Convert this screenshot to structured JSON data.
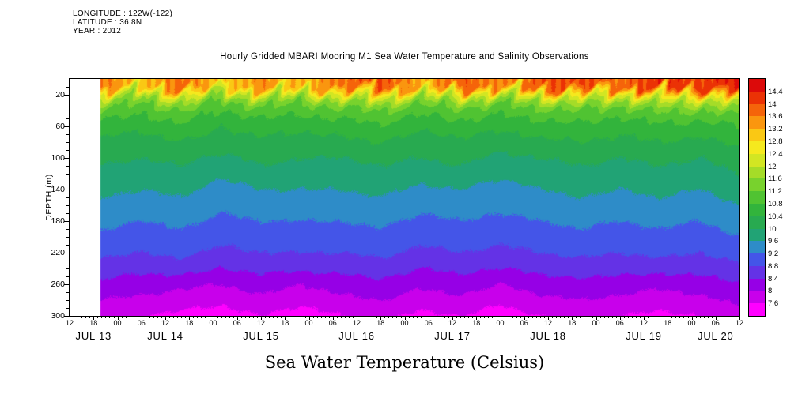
{
  "header": {
    "longitude": "LONGITUDE : 122W(-122)",
    "latitude": "LATITUDE : 36.8N",
    "year": "YEAR : 2012"
  },
  "title": "Hourly Gridded MBARI Mooring M1 Sea Water Temperature and Salinity Observations",
  "caption": "Sea Water Temperature (Celsius)",
  "axes": {
    "y_label": "DEPTH (m)",
    "depth_range_m": [
      0,
      300
    ],
    "depth_major_ticks": [
      20,
      60,
      100,
      140,
      180,
      220,
      260,
      300
    ],
    "depth_minor_step": 10,
    "time_tick_step_hours": 6,
    "time_tick_labels": [
      "12",
      "18",
      "00",
      "06",
      "12",
      "18",
      "00",
      "06",
      "12",
      "18",
      "00",
      "06",
      "12",
      "18",
      "00",
      "06",
      "12",
      "18",
      "00",
      "06",
      "12",
      "18",
      "00",
      "06",
      "12",
      "18",
      "00",
      "06",
      "12"
    ],
    "dates": [
      {
        "label": "JUL 13",
        "start": 0,
        "end": 12
      },
      {
        "label": "JUL 14",
        "start": 12,
        "end": 36
      },
      {
        "label": "JUL 15",
        "start": 36,
        "end": 60
      },
      {
        "label": "JUL 16",
        "start": 60,
        "end": 84
      },
      {
        "label": "JUL 17",
        "start": 84,
        "end": 108
      },
      {
        "label": "JUL 18",
        "start": 108,
        "end": 132
      },
      {
        "label": "JUL 19",
        "start": 132,
        "end": 156
      },
      {
        "label": "JUL 20",
        "start": 156,
        "end": 168
      }
    ]
  },
  "colorbar": {
    "labels_top_to_bottom": [
      "14.4",
      "14",
      "13.6",
      "13.2",
      "12.8",
      "12.4",
      "12",
      "11.6",
      "11.2",
      "10.8",
      "10.4",
      "10",
      "9.6",
      "9.2",
      "8.8",
      "8.4",
      "8",
      "7.6"
    ]
  },
  "chart_data": {
    "type": "heatmap",
    "title": "Hourly Gridded MBARI Mooring M1 Sea Water Temperature and Salinity Observations",
    "ylabel": "DEPTH (m)",
    "units": "Celsius",
    "value_range_c": [
      7.6,
      14.4
    ],
    "levels_c": [
      7.6,
      8,
      8.4,
      8.8,
      9.2,
      9.6,
      10,
      10.4,
      10.8,
      11.2,
      11.6,
      12,
      12.4,
      12.8,
      13.2,
      13.6,
      14,
      14.4
    ],
    "band_colors_low_to_high": [
      "#FF00FF",
      "#C800EB",
      "#9600E6",
      "#6432E6",
      "#4455E8",
      "#2E8CC8",
      "#21A375",
      "#28AA50",
      "#32B43C",
      "#50C332",
      "#78D22D",
      "#A5DC28",
      "#D2E623",
      "#F5E91E",
      "#FAC814",
      "#FA960F",
      "#F5640A",
      "#EB3205",
      "#DC0A0A"
    ],
    "time_axis_span_hours": 168,
    "data_start_hour": 7.7,
    "x_hours_since_axis_start": [
      8,
      18,
      28,
      38,
      48,
      58,
      68,
      78,
      88,
      98,
      108,
      118,
      128,
      138,
      148,
      158,
      168
    ],
    "depths_m": [
      10,
      20,
      30,
      40,
      60,
      80,
      100,
      120,
      140,
      160,
      180,
      200,
      220,
      240,
      260,
      280,
      300
    ],
    "values_c": [
      [
        13.6,
        13.0,
        13.8,
        12.9,
        13.5,
        13.1,
        13.7,
        14.0,
        13.2,
        13.9,
        13.5,
        13.9,
        14.1,
        13.7,
        14.3,
        14.1,
        14.4
      ],
      [
        12.4,
        11.8,
        12.6,
        11.7,
        12.3,
        11.9,
        12.5,
        12.7,
        12.0,
        12.5,
        12.1,
        12.5,
        12.7,
        12.3,
        12.9,
        12.7,
        13.1
      ],
      [
        11.6,
        11.2,
        11.8,
        11.1,
        11.5,
        11.2,
        11.6,
        11.8,
        11.3,
        11.6,
        11.3,
        11.6,
        11.8,
        11.5,
        11.9,
        11.8,
        12.1
      ],
      [
        11.1,
        10.9,
        11.2,
        10.8,
        11.0,
        10.9,
        11.1,
        11.2,
        10.9,
        11.1,
        10.9,
        11.1,
        11.2,
        11.0,
        11.3,
        11.2,
        11.4
      ],
      [
        10.6,
        10.5,
        10.7,
        10.4,
        10.6,
        10.5,
        10.6,
        10.7,
        10.5,
        10.6,
        10.5,
        10.6,
        10.7,
        10.5,
        10.7,
        10.6,
        10.8
      ],
      [
        10.3,
        10.2,
        10.4,
        10.2,
        10.3,
        10.2,
        10.3,
        10.4,
        10.2,
        10.3,
        10.2,
        10.3,
        10.4,
        10.3,
        10.4,
        10.3,
        10.5
      ],
      [
        10.1,
        10.0,
        10.1,
        9.9,
        10.1,
        10.0,
        10.0,
        10.1,
        10.0,
        10.1,
        9.9,
        10.0,
        10.1,
        10.0,
        10.1,
        10.0,
        10.2
      ],
      [
        9.9,
        9.8,
        9.9,
        9.7,
        9.9,
        9.8,
        9.8,
        9.9,
        9.8,
        9.9,
        9.7,
        9.8,
        9.9,
        9.8,
        9.9,
        9.8,
        10.0
      ],
      [
        9.7,
        9.6,
        9.7,
        9.4,
        9.6,
        9.6,
        9.6,
        9.7,
        9.5,
        9.6,
        9.4,
        9.6,
        9.7,
        9.6,
        9.7,
        9.6,
        9.8
      ],
      [
        9.5,
        9.4,
        9.5,
        9.3,
        9.4,
        9.4,
        9.4,
        9.5,
        9.3,
        9.4,
        9.3,
        9.4,
        9.5,
        9.4,
        9.5,
        9.4,
        9.6
      ],
      [
        9.3,
        9.2,
        9.3,
        9.1,
        9.2,
        9.2,
        9.2,
        9.3,
        9.1,
        9.2,
        9.1,
        9.2,
        9.3,
        9.2,
        9.3,
        9.2,
        9.4
      ],
      [
        9.1,
        9.0,
        9.1,
        8.9,
        9.0,
        9.0,
        9.0,
        9.1,
        8.9,
        9.0,
        8.9,
        9.0,
        9.1,
        9.0,
        9.1,
        9.0,
        9.2
      ],
      [
        8.9,
        8.8,
        8.9,
        8.7,
        8.8,
        8.8,
        8.8,
        8.9,
        8.7,
        8.8,
        8.7,
        8.8,
        8.9,
        8.8,
        8.9,
        8.8,
        9.0
      ],
      [
        8.6,
        8.5,
        8.6,
        8.4,
        8.5,
        8.5,
        8.5,
        8.6,
        8.4,
        8.5,
        8.4,
        8.5,
        8.6,
        8.5,
        8.6,
        8.5,
        8.7
      ],
      [
        8.3,
        8.2,
        8.1,
        8.0,
        8.2,
        8.0,
        8.2,
        8.3,
        8.1,
        8.2,
        8.0,
        8.2,
        8.3,
        8.2,
        8.1,
        8.2,
        8.4
      ],
      [
        8.0,
        7.9,
        7.8,
        7.7,
        7.9,
        7.7,
        7.9,
        8.0,
        7.8,
        7.9,
        7.7,
        7.9,
        8.0,
        7.9,
        7.8,
        7.9,
        8.1
      ],
      [
        7.7,
        7.6,
        7.5,
        7.4,
        7.6,
        7.4,
        7.6,
        7.7,
        7.5,
        7.6,
        7.4,
        7.6,
        7.7,
        7.6,
        7.5,
        7.6,
        7.8
      ]
    ]
  }
}
